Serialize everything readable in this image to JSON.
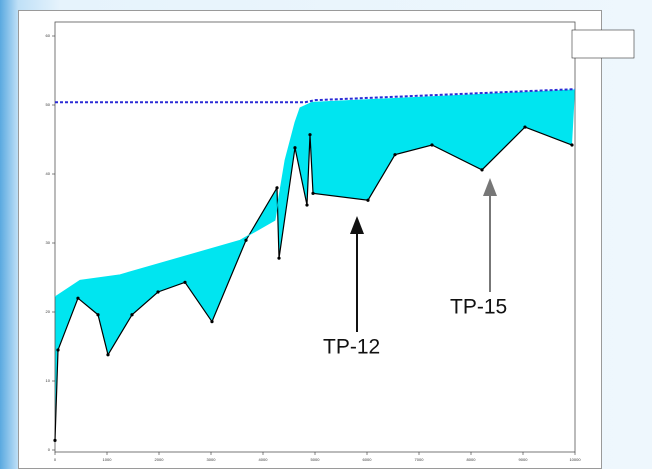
{
  "chart_data": {
    "type": "line",
    "x": null,
    "series": [
      {
        "color": "#000000",
        "x": [
          0,
          58,
          442,
          827,
          1019,
          1481,
          1981,
          2500,
          3019,
          3673,
          4269,
          4308,
          4615,
          4846,
          4904,
          4962,
          6019,
          6538,
          7250,
          8212,
          9038,
          9942
        ],
        "values": [
          1.4,
          14.5,
          22,
          19.6,
          13.8,
          19.6,
          22.9,
          24.3,
          18.6,
          30.4,
          38,
          27.8,
          43.8,
          35.5,
          45.7,
          37.2,
          36.2,
          42.8,
          44.2,
          40.6,
          46.8,
          44.2
        ]
      },
      {
        "color": "#00e5f0",
        "x": [
          0,
          481,
          1250,
          3558,
          4231,
          4423,
          4615,
          4712,
          4942,
          10000
        ],
        "values": [
          22.2,
          24.6,
          25.4,
          30.4,
          33.3,
          42,
          47.5,
          49.6,
          50.4,
          52.2
        ]
      },
      {
        "color": "#2b2bd6",
        "x": [
          0,
          4808,
          5000,
          10000
        ],
        "values": [
          50.4,
          50.4,
          50.7,
          52.3
        ]
      }
    ],
    "xlim": [
      0,
      10000
    ],
    "xticks": [
      0,
      1000,
      2000,
      3000,
      4000,
      5000,
      6000,
      7000,
      8000,
      9000,
      10000
    ],
    "ylim": [
      0,
      60
    ],
    "yticks": [
      0,
      10,
      20,
      30,
      40,
      50,
      60
    ],
    "annotations": [
      "TP-12",
      "TP-15"
    ]
  }
}
